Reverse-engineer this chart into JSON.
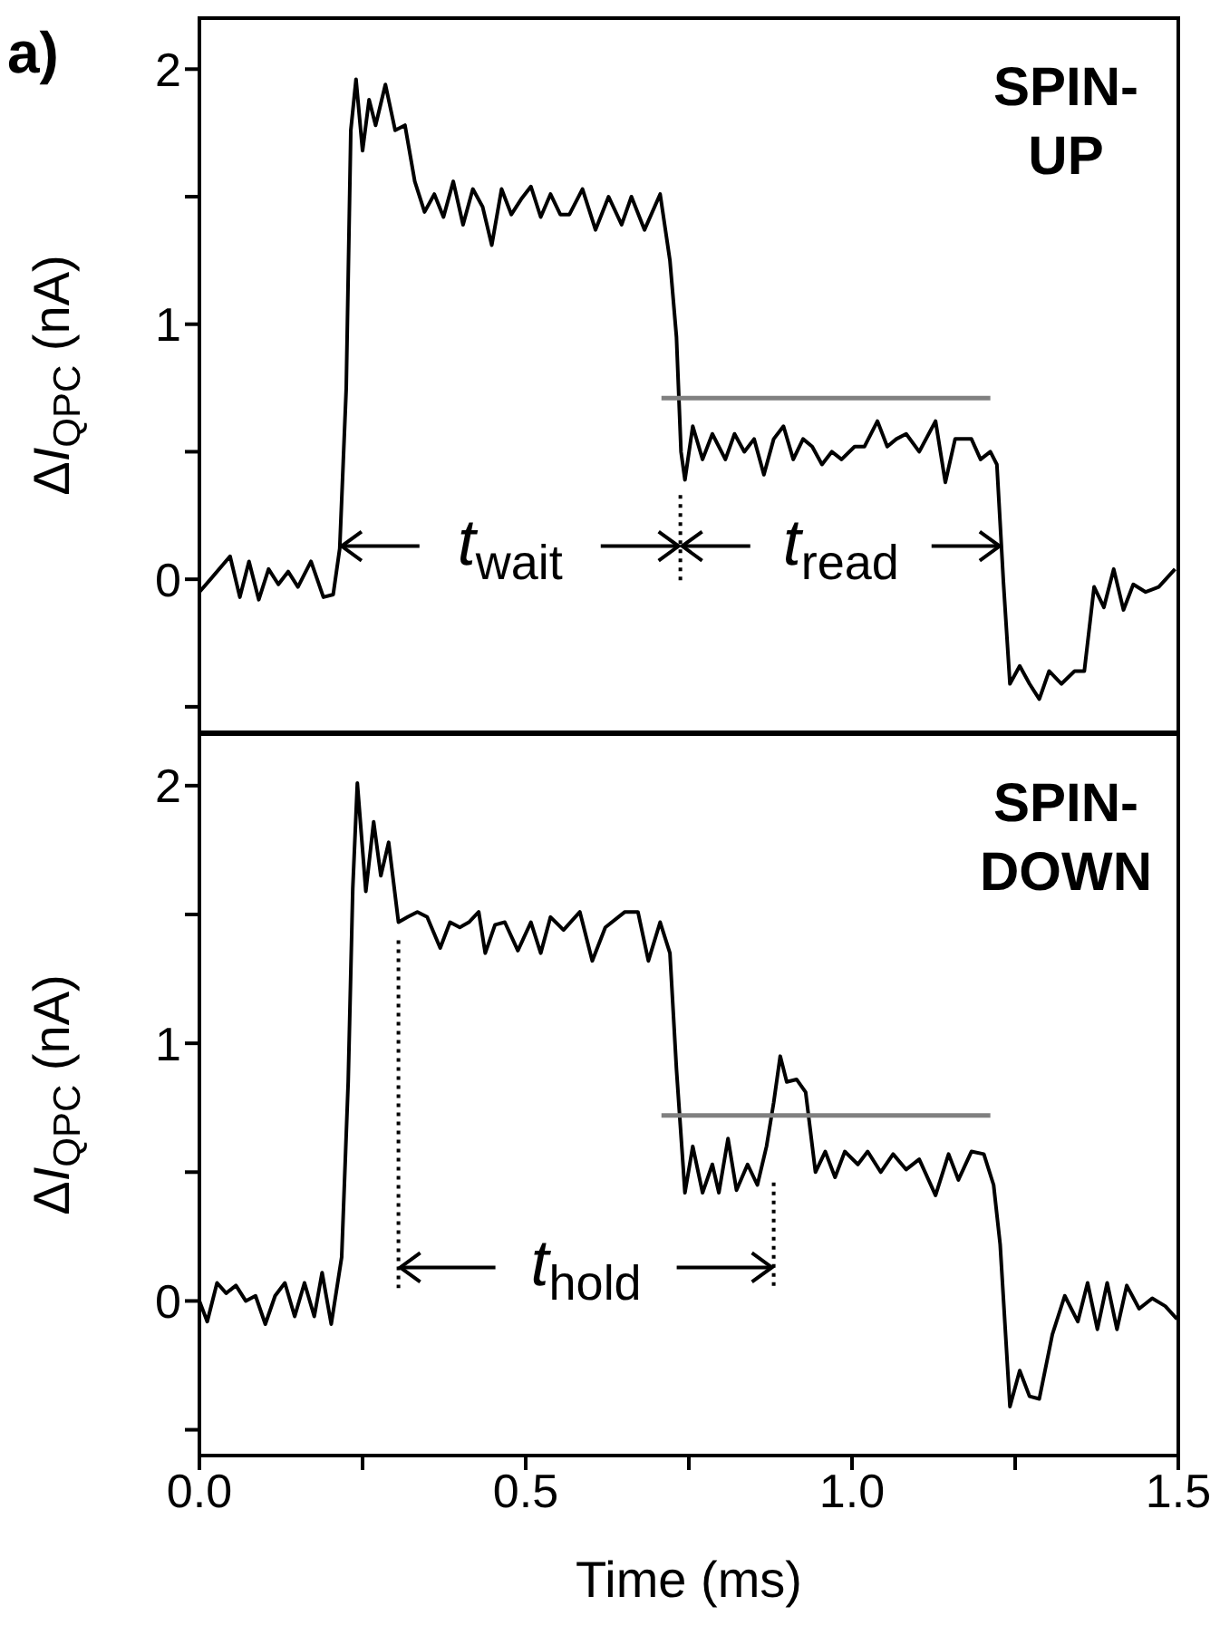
{
  "chart_data": [
    {
      "type": "line",
      "title": "a)",
      "ylabel": "ΔI$_{QPC}$ (nA)",
      "xlim": [
        0,
        1.5
      ],
      "xticks": [
        {
          "value": 0,
          "label": null
        },
        {
          "value": 0.25,
          "label": null
        },
        {
          "value": 0.5,
          "label": null
        },
        {
          "value": 0.75,
          "label": null
        },
        {
          "value": 1,
          "label": null
        },
        {
          "value": 1.25,
          "label": null
        },
        {
          "value": 1.5,
          "label": null
        }
      ],
      "ylim": [
        -0.6,
        2.2
      ],
      "yticks": [
        {
          "value": -0.5,
          "label": null
        },
        0,
        {
          "value": 0.5,
          "label": null
        },
        1,
        {
          "value": 1.5,
          "label": null
        },
        2
      ],
      "tick_labels": "y",
      "grid": false,
      "legend": false,
      "marker": "none",
      "annotations": [
        "SPIN-\nUP",
        {
          "text": "t$_{wait}$",
          "x": 0.737,
          "y": 0.13
        },
        {
          "text": "t$_{read}$",
          "x": 1.229,
          "y": 0.13
        }
      ],
      "series": [
        {
          "color": "#000000",
          "line_style": "solid",
          "x": [
            0,
            0.017,
            0.047,
            0.062,
            0.076,
            0.091,
            0.106,
            0.121,
            0.136,
            0.151,
            0.171,
            0.19,
            0.205,
            0.215,
            0.225,
            0.232,
            0.24,
            0.25,
            0.26,
            0.27,
            0.285,
            0.3,
            0.315,
            0.33,
            0.345,
            0.36,
            0.374,
            0.389,
            0.404,
            0.419,
            0.434,
            0.448,
            0.463,
            0.478,
            0.493,
            0.508,
            0.523,
            0.538,
            0.553,
            0.567,
            0.587,
            0.607,
            0.627,
            0.647,
            0.662,
            0.682,
            0.706,
            0.721,
            0.731,
            0.738,
            0.744,
            0.756,
            0.771,
            0.786,
            0.806,
            0.82,
            0.835,
            0.85,
            0.865,
            0.88,
            0.895,
            0.91,
            0.925,
            0.939,
            0.954,
            0.969,
            0.984,
            1.004,
            1.019,
            1.039,
            1.054,
            1.068,
            1.083,
            1.103,
            1.128,
            1.143,
            1.158,
            1.183,
            1.197,
            1.212,
            1.222,
            1.232,
            1.242,
            1.257,
            1.272,
            1.287,
            1.302,
            1.321,
            1.341,
            1.356,
            1.371,
            1.386,
            1.401,
            1.416,
            1.431,
            1.45,
            1.47,
            1.495
          ],
          "values": [
            -0.05,
            0,
            0.09,
            -0.07,
            0.07,
            -0.08,
            0.04,
            -0.02,
            0.03,
            -0.03,
            0.07,
            -0.07,
            -0.06,
            0.12,
            0.75,
            1.76,
            1.96,
            1.68,
            1.88,
            1.78,
            1.94,
            1.76,
            1.78,
            1.56,
            1.44,
            1.51,
            1.42,
            1.56,
            1.39,
            1.53,
            1.46,
            1.31,
            1.53,
            1.43,
            1.49,
            1.54,
            1.42,
            1.51,
            1.43,
            1.43,
            1.53,
            1.37,
            1.5,
            1.39,
            1.5,
            1.37,
            1.51,
            1.25,
            0.95,
            0.5,
            0.39,
            0.6,
            0.47,
            0.57,
            0.47,
            0.57,
            0.5,
            0.55,
            0.41,
            0.55,
            0.6,
            0.47,
            0.55,
            0.52,
            0.45,
            0.5,
            0.47,
            0.52,
            0.52,
            0.62,
            0.52,
            0.55,
            0.57,
            0.5,
            0.62,
            0.38,
            0.55,
            0.55,
            0.47,
            0.5,
            0.45,
            -0.01,
            -0.41,
            -0.34,
            -0.41,
            -0.47,
            -0.36,
            -0.41,
            -0.36,
            -0.36,
            -0.03,
            -0.11,
            0.04,
            -0.12,
            -0.02,
            -0.05,
            -0.03,
            0.04
          ]
        },
        {
          "color": "#808080",
          "line_style": "solid",
          "x": [
            0.708,
            1.212
          ],
          "values": [
            0.71,
            0.71
          ]
        },
        {
          "color": "#000000",
          "line_style": "dotted",
          "x": [
            0.737,
            0.737
          ],
          "values": [
            0.33,
            -0.02
          ]
        }
      ]
    },
    {
      "type": "line",
      "xlabel": "Time (ms)",
      "ylabel": "ΔI$_{QPC}$ (nA)",
      "xlim": [
        0,
        1.5
      ],
      "xticks": [
        {
          "value": 0,
          "label": "0.0"
        },
        {
          "value": 0.25,
          "label": null
        },
        0.5,
        {
          "value": 0.75,
          "label": null
        },
        {
          "value": 1,
          "label": "1.0"
        },
        {
          "value": 1.25,
          "label": null
        },
        1.5
      ],
      "ylim": [
        -0.6,
        2.2
      ],
      "yticks": [
        {
          "value": -0.5,
          "label": null
        },
        0,
        {
          "value": 0.5,
          "label": null
        },
        1,
        {
          "value": 1.5,
          "label": null
        },
        2
      ],
      "grid": false,
      "legend": false,
      "marker": "none",
      "annotations": [
        "SPIN-\nDOWN",
        {
          "text": "t$_{hold}$",
          "x": 0.88,
          "y": 0.13
        }
      ],
      "series": [
        {
          "color": "#000000",
          "line_style": "solid",
          "x": [
            0,
            0.012,
            0.027,
            0.041,
            0.056,
            0.071,
            0.086,
            0.101,
            0.116,
            0.131,
            0.146,
            0.161,
            0.176,
            0.188,
            0.202,
            0.218,
            0.228,
            0.235,
            0.242,
            0.255,
            0.267,
            0.278,
            0.29,
            0.305,
            0.319,
            0.334,
            0.349,
            0.369,
            0.384,
            0.399,
            0.413,
            0.428,
            0.438,
            0.453,
            0.468,
            0.488,
            0.508,
            0.523,
            0.538,
            0.558,
            0.583,
            0.602,
            0.622,
            0.652,
            0.672,
            0.688,
            0.706,
            0.721,
            0.731,
            0.744,
            0.756,
            0.771,
            0.786,
            0.796,
            0.81,
            0.823,
            0.84,
            0.855,
            0.869,
            0.88,
            0.89,
            0.9,
            0.915,
            0.929,
            0.944,
            0.959,
            0.974,
            0.989,
            1.009,
            1.024,
            1.044,
            1.063,
            1.083,
            1.103,
            1.128,
            1.148,
            1.163,
            1.183,
            1.202,
            1.217,
            1.227,
            1.242,
            1.257,
            1.272,
            1.287,
            1.307,
            1.326,
            1.346,
            1.361,
            1.376,
            1.391,
            1.406,
            1.421,
            1.44,
            1.46,
            1.48,
            1.498
          ],
          "values": [
            0,
            -0.08,
            0.07,
            0.03,
            0.06,
            0,
            0.02,
            -0.09,
            0.02,
            0.07,
            -0.06,
            0.07,
            -0.06,
            0.11,
            -0.09,
            0.17,
            0.85,
            1.6,
            2.01,
            1.59,
            1.86,
            1.65,
            1.78,
            1.47,
            1.49,
            1.51,
            1.49,
            1.37,
            1.47,
            1.45,
            1.47,
            1.51,
            1.35,
            1.46,
            1.47,
            1.36,
            1.47,
            1.35,
            1.49,
            1.44,
            1.51,
            1.32,
            1.45,
            1.51,
            1.51,
            1.32,
            1.47,
            1.35,
            0.9,
            0.42,
            0.6,
            0.42,
            0.53,
            0.42,
            0.63,
            0.43,
            0.53,
            0.45,
            0.6,
            0.77,
            0.95,
            0.85,
            0.86,
            0.81,
            0.5,
            0.58,
            0.48,
            0.58,
            0.53,
            0.58,
            0.5,
            0.57,
            0.51,
            0.55,
            0.41,
            0.57,
            0.47,
            0.58,
            0.57,
            0.45,
            0.22,
            -0.41,
            -0.27,
            -0.37,
            -0.38,
            -0.13,
            0.02,
            -0.08,
            0.07,
            -0.11,
            0.07,
            -0.11,
            0.06,
            -0.03,
            0.01,
            -0.02,
            -0.07
          ]
        },
        {
          "color": "#808080",
          "line_style": "solid",
          "x": [
            0.708,
            1.212
          ],
          "values": [
            0.72,
            0.72
          ]
        },
        {
          "color": "#000000",
          "line_style": "dotted",
          "x": [
            0.305,
            0.305
          ],
          "values": [
            1.4,
            0.05
          ]
        },
        {
          "color": "#000000",
          "line_style": "dotted",
          "x": [
            0.88,
            0.88
          ],
          "values": [
            0.46,
            0.05
          ]
        }
      ]
    }
  ]
}
